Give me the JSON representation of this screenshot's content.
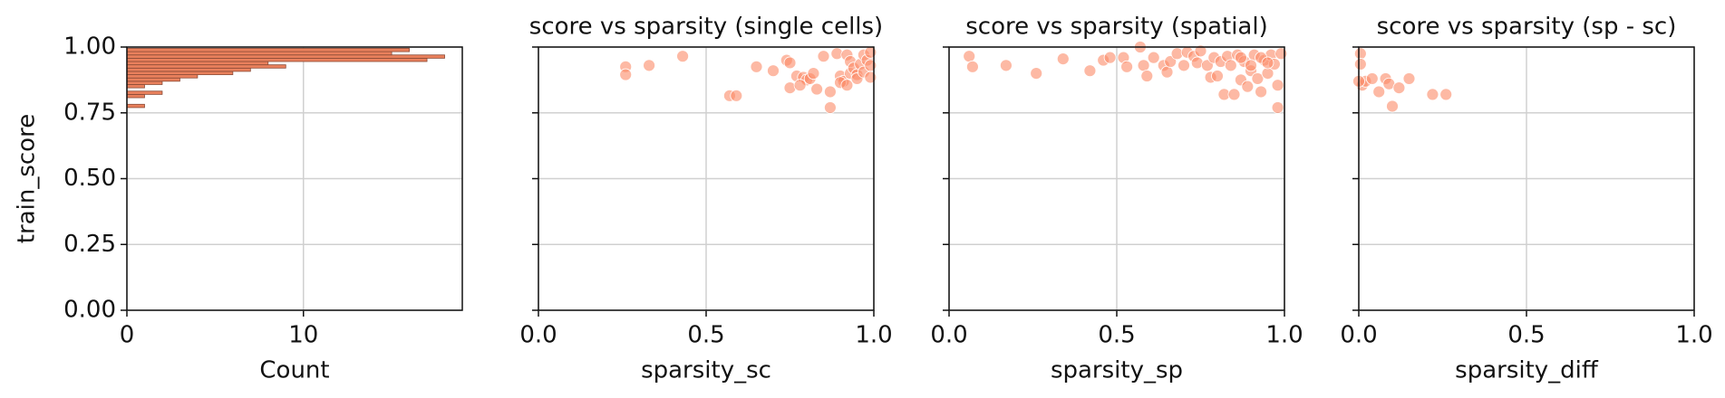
{
  "chart_data": [
    {
      "type": "histogram",
      "xlabel": "Count",
      "ylabel": "train_score",
      "orientation": "horizontal",
      "bins": [
        0.77,
        0.7825,
        0.795,
        0.8075,
        0.82,
        0.8325,
        0.845,
        0.8575,
        0.87,
        0.8825,
        0.895,
        0.9075,
        0.92,
        0.9325,
        0.945,
        0.9575,
        0.97,
        0.9825,
        0.995
      ],
      "values": [
        1,
        0,
        0,
        1,
        2,
        0,
        1,
        2,
        3,
        4,
        6,
        7,
        9,
        8,
        17,
        18,
        15,
        16
      ],
      "color": "#e9805c",
      "edgecolor": "#8a4a36",
      "xlim": [
        0,
        19
      ],
      "xticks": [
        0,
        10
      ],
      "ylim": [
        0,
        1
      ],
      "yticks": [
        {
          "value": 0,
          "label": "0.00"
        },
        {
          "value": 0.25,
          "label": "0.25"
        },
        {
          "value": 0.5,
          "label": "0.50"
        },
        {
          "value": 0.75,
          "label": "0.75"
        },
        {
          "value": 1,
          "label": "1.00"
        }
      ],
      "grid": true
    },
    {
      "type": "scatter",
      "title": "score vs sparsity (single cells)",
      "xlabel": "sparsity_sc",
      "color": "#fb8a68",
      "x": [
        0.26,
        0.26,
        0.33,
        0.43,
        0.65,
        0.7,
        0.74,
        0.75,
        0.75,
        0.57,
        0.59,
        0.77,
        0.79,
        0.8,
        0.81,
        0.78,
        0.85,
        0.87,
        0.87,
        0.89,
        0.9,
        0.91,
        0.92,
        0.93,
        0.93,
        0.94,
        0.95,
        0.95,
        0.96,
        0.97,
        0.97,
        0.98,
        0.99,
        0.99,
        0.99,
        0.9,
        0.92,
        0.83,
        0.82
      ],
      "values": [
        0.925,
        0.895,
        0.93,
        0.965,
        0.925,
        0.91,
        0.95,
        0.94,
        0.845,
        0.815,
        0.815,
        0.89,
        0.885,
        0.875,
        0.88,
        0.855,
        0.965,
        0.83,
        0.77,
        0.975,
        0.89,
        0.87,
        0.97,
        0.9,
        0.945,
        0.92,
        0.895,
        0.88,
        0.935,
        0.97,
        0.905,
        0.95,
        0.885,
        0.98,
        0.93,
        0.865,
        0.855,
        0.84,
        0.9
      ],
      "xlim": [
        0,
        1
      ],
      "xticks": [
        {
          "value": 0,
          "label": "0.0"
        },
        {
          "value": 0.5,
          "label": "0.5"
        },
        {
          "value": 1,
          "label": "1.0"
        }
      ],
      "ylim": [
        0,
        1
      ],
      "yticks": [
        0,
        0.25,
        0.5,
        0.75,
        1
      ],
      "grid": true
    },
    {
      "type": "scatter",
      "title": "score vs sparsity (spatial)",
      "xlabel": "sparsity_sp",
      "color": "#fb8a68",
      "x": [
        0.06,
        0.07,
        0.17,
        0.26,
        0.34,
        0.42,
        0.46,
        0.48,
        0.52,
        0.53,
        0.57,
        0.58,
        0.59,
        0.61,
        0.64,
        0.65,
        0.66,
        0.68,
        0.7,
        0.71,
        0.73,
        0.74,
        0.75,
        0.77,
        0.78,
        0.79,
        0.8,
        0.81,
        0.82,
        0.83,
        0.84,
        0.85,
        0.86,
        0.87,
        0.88,
        0.89,
        0.9,
        0.91,
        0.92,
        0.93,
        0.94,
        0.95,
        0.96,
        0.97,
        0.98,
        0.98,
        0.99,
        0.9,
        0.93,
        0.87,
        0.95
      ],
      "values": [
        0.965,
        0.925,
        0.93,
        0.9,
        0.955,
        0.91,
        0.95,
        0.96,
        0.96,
        0.925,
        1.0,
        0.93,
        0.89,
        0.96,
        0.93,
        0.905,
        0.945,
        0.975,
        0.93,
        0.98,
        0.965,
        0.94,
        0.985,
        0.93,
        0.885,
        0.96,
        0.89,
        0.945,
        0.82,
        0.965,
        0.93,
        0.82,
        0.97,
        0.875,
        0.945,
        0.85,
        0.91,
        0.97,
        0.88,
        0.83,
        0.95,
        0.9,
        0.97,
        0.935,
        0.855,
        0.77,
        0.975,
        0.93,
        0.96,
        0.96,
        0.94
      ],
      "xlim": [
        0,
        1
      ],
      "xticks": [
        {
          "value": 0,
          "label": "0.0"
        },
        {
          "value": 0.5,
          "label": "0.5"
        },
        {
          "value": 1,
          "label": "1.0"
        }
      ],
      "ylim": [
        0,
        1
      ],
      "yticks": [
        0,
        0.25,
        0.5,
        0.75,
        1
      ],
      "grid": true
    },
    {
      "type": "scatter",
      "title": "score vs sparsity (sp - sc)",
      "xlabel": "sparsity_diff",
      "color": "#fb8a68",
      "x": [
        0.005,
        0.005,
        0.01,
        0.02,
        0.04,
        0.06,
        0.08,
        0.09,
        0.1,
        0.12,
        0.15,
        0.22,
        0.26,
        0.0
      ],
      "values": [
        0.975,
        0.935,
        0.855,
        0.87,
        0.88,
        0.83,
        0.88,
        0.86,
        0.775,
        0.845,
        0.88,
        0.82,
        0.82,
        0.87
      ],
      "xlim": [
        0,
        1
      ],
      "xticks": [
        {
          "value": 0,
          "label": "0.0"
        },
        {
          "value": 0.5,
          "label": "0.5"
        },
        {
          "value": 1,
          "label": "1.0"
        }
      ],
      "ylim": [
        0,
        1
      ],
      "yticks": [
        0,
        0.25,
        0.5,
        0.75,
        1
      ],
      "grid": true
    }
  ]
}
